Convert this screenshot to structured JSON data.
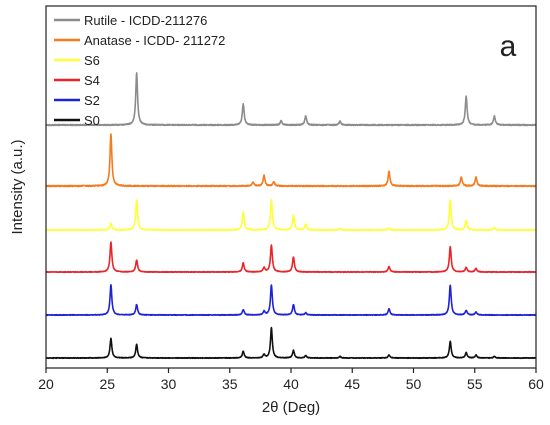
{
  "chart_data": {
    "type": "line",
    "panel_label": "a",
    "xlabel": "2θ (Deg)",
    "ylabel": "Intensity (a.u.)",
    "xlim": [
      20,
      60
    ],
    "x_ticks": [
      20,
      25,
      30,
      35,
      40,
      45,
      50,
      55,
      60
    ],
    "y_ticks_shown": false,
    "grid": false,
    "legend_position": "top-left",
    "series": [
      {
        "name": "Rutile - ICDD-211276",
        "color": "#8c8c8c",
        "peaks": [
          [
            27.4,
            1.0
          ],
          [
            36.1,
            0.4
          ],
          [
            39.2,
            0.08
          ],
          [
            41.2,
            0.17
          ],
          [
            44.0,
            0.07
          ],
          [
            54.3,
            0.55
          ],
          [
            56.6,
            0.17
          ]
        ]
      },
      {
        "name": "Anatase - ICDD- 211272",
        "color": "#f47b20",
        "peaks": [
          [
            25.3,
            1.0
          ],
          [
            36.9,
            0.07
          ],
          [
            37.8,
            0.2
          ],
          [
            38.6,
            0.08
          ],
          [
            48.0,
            0.28
          ],
          [
            53.9,
            0.17
          ],
          [
            55.1,
            0.17
          ]
        ]
      },
      {
        "name": "S6",
        "color": "#ffff33",
        "peaks": [
          [
            25.3,
            0.22
          ],
          [
            27.4,
            1.0
          ],
          [
            36.1,
            0.6
          ],
          [
            38.4,
            1.0
          ],
          [
            40.2,
            0.5
          ],
          [
            41.2,
            0.2
          ],
          [
            44.0,
            0.05
          ],
          [
            48.0,
            0.06
          ],
          [
            53.0,
            1.0
          ],
          [
            54.3,
            0.32
          ],
          [
            56.6,
            0.08
          ]
        ]
      },
      {
        "name": "S4",
        "color": "#e8252b",
        "peaks": [
          [
            25.3,
            1.0
          ],
          [
            27.4,
            0.4
          ],
          [
            36.1,
            0.3
          ],
          [
            37.8,
            0.15
          ],
          [
            38.4,
            0.9
          ],
          [
            40.2,
            0.5
          ],
          [
            48.0,
            0.18
          ],
          [
            53.0,
            0.85
          ],
          [
            54.3,
            0.15
          ],
          [
            55.1,
            0.12
          ]
        ]
      },
      {
        "name": "S2",
        "color": "#1f23d6",
        "peaks": [
          [
            25.3,
            1.0
          ],
          [
            27.4,
            0.35
          ],
          [
            36.1,
            0.18
          ],
          [
            37.8,
            0.12
          ],
          [
            38.4,
            1.0
          ],
          [
            40.2,
            0.35
          ],
          [
            41.2,
            0.07
          ],
          [
            48.0,
            0.2
          ],
          [
            53.0,
            1.0
          ],
          [
            54.3,
            0.15
          ],
          [
            55.1,
            0.1
          ]
        ]
      },
      {
        "name": "S0",
        "color": "#111111",
        "peaks": [
          [
            25.3,
            0.65
          ],
          [
            27.4,
            0.45
          ],
          [
            36.1,
            0.22
          ],
          [
            37.8,
            0.12
          ],
          [
            38.4,
            1.0
          ],
          [
            40.2,
            0.25
          ],
          [
            41.2,
            0.08
          ],
          [
            44.0,
            0.05
          ],
          [
            48.0,
            0.1
          ],
          [
            53.0,
            0.55
          ],
          [
            54.3,
            0.18
          ],
          [
            55.1,
            0.1
          ],
          [
            56.6,
            0.05
          ]
        ]
      }
    ]
  }
}
